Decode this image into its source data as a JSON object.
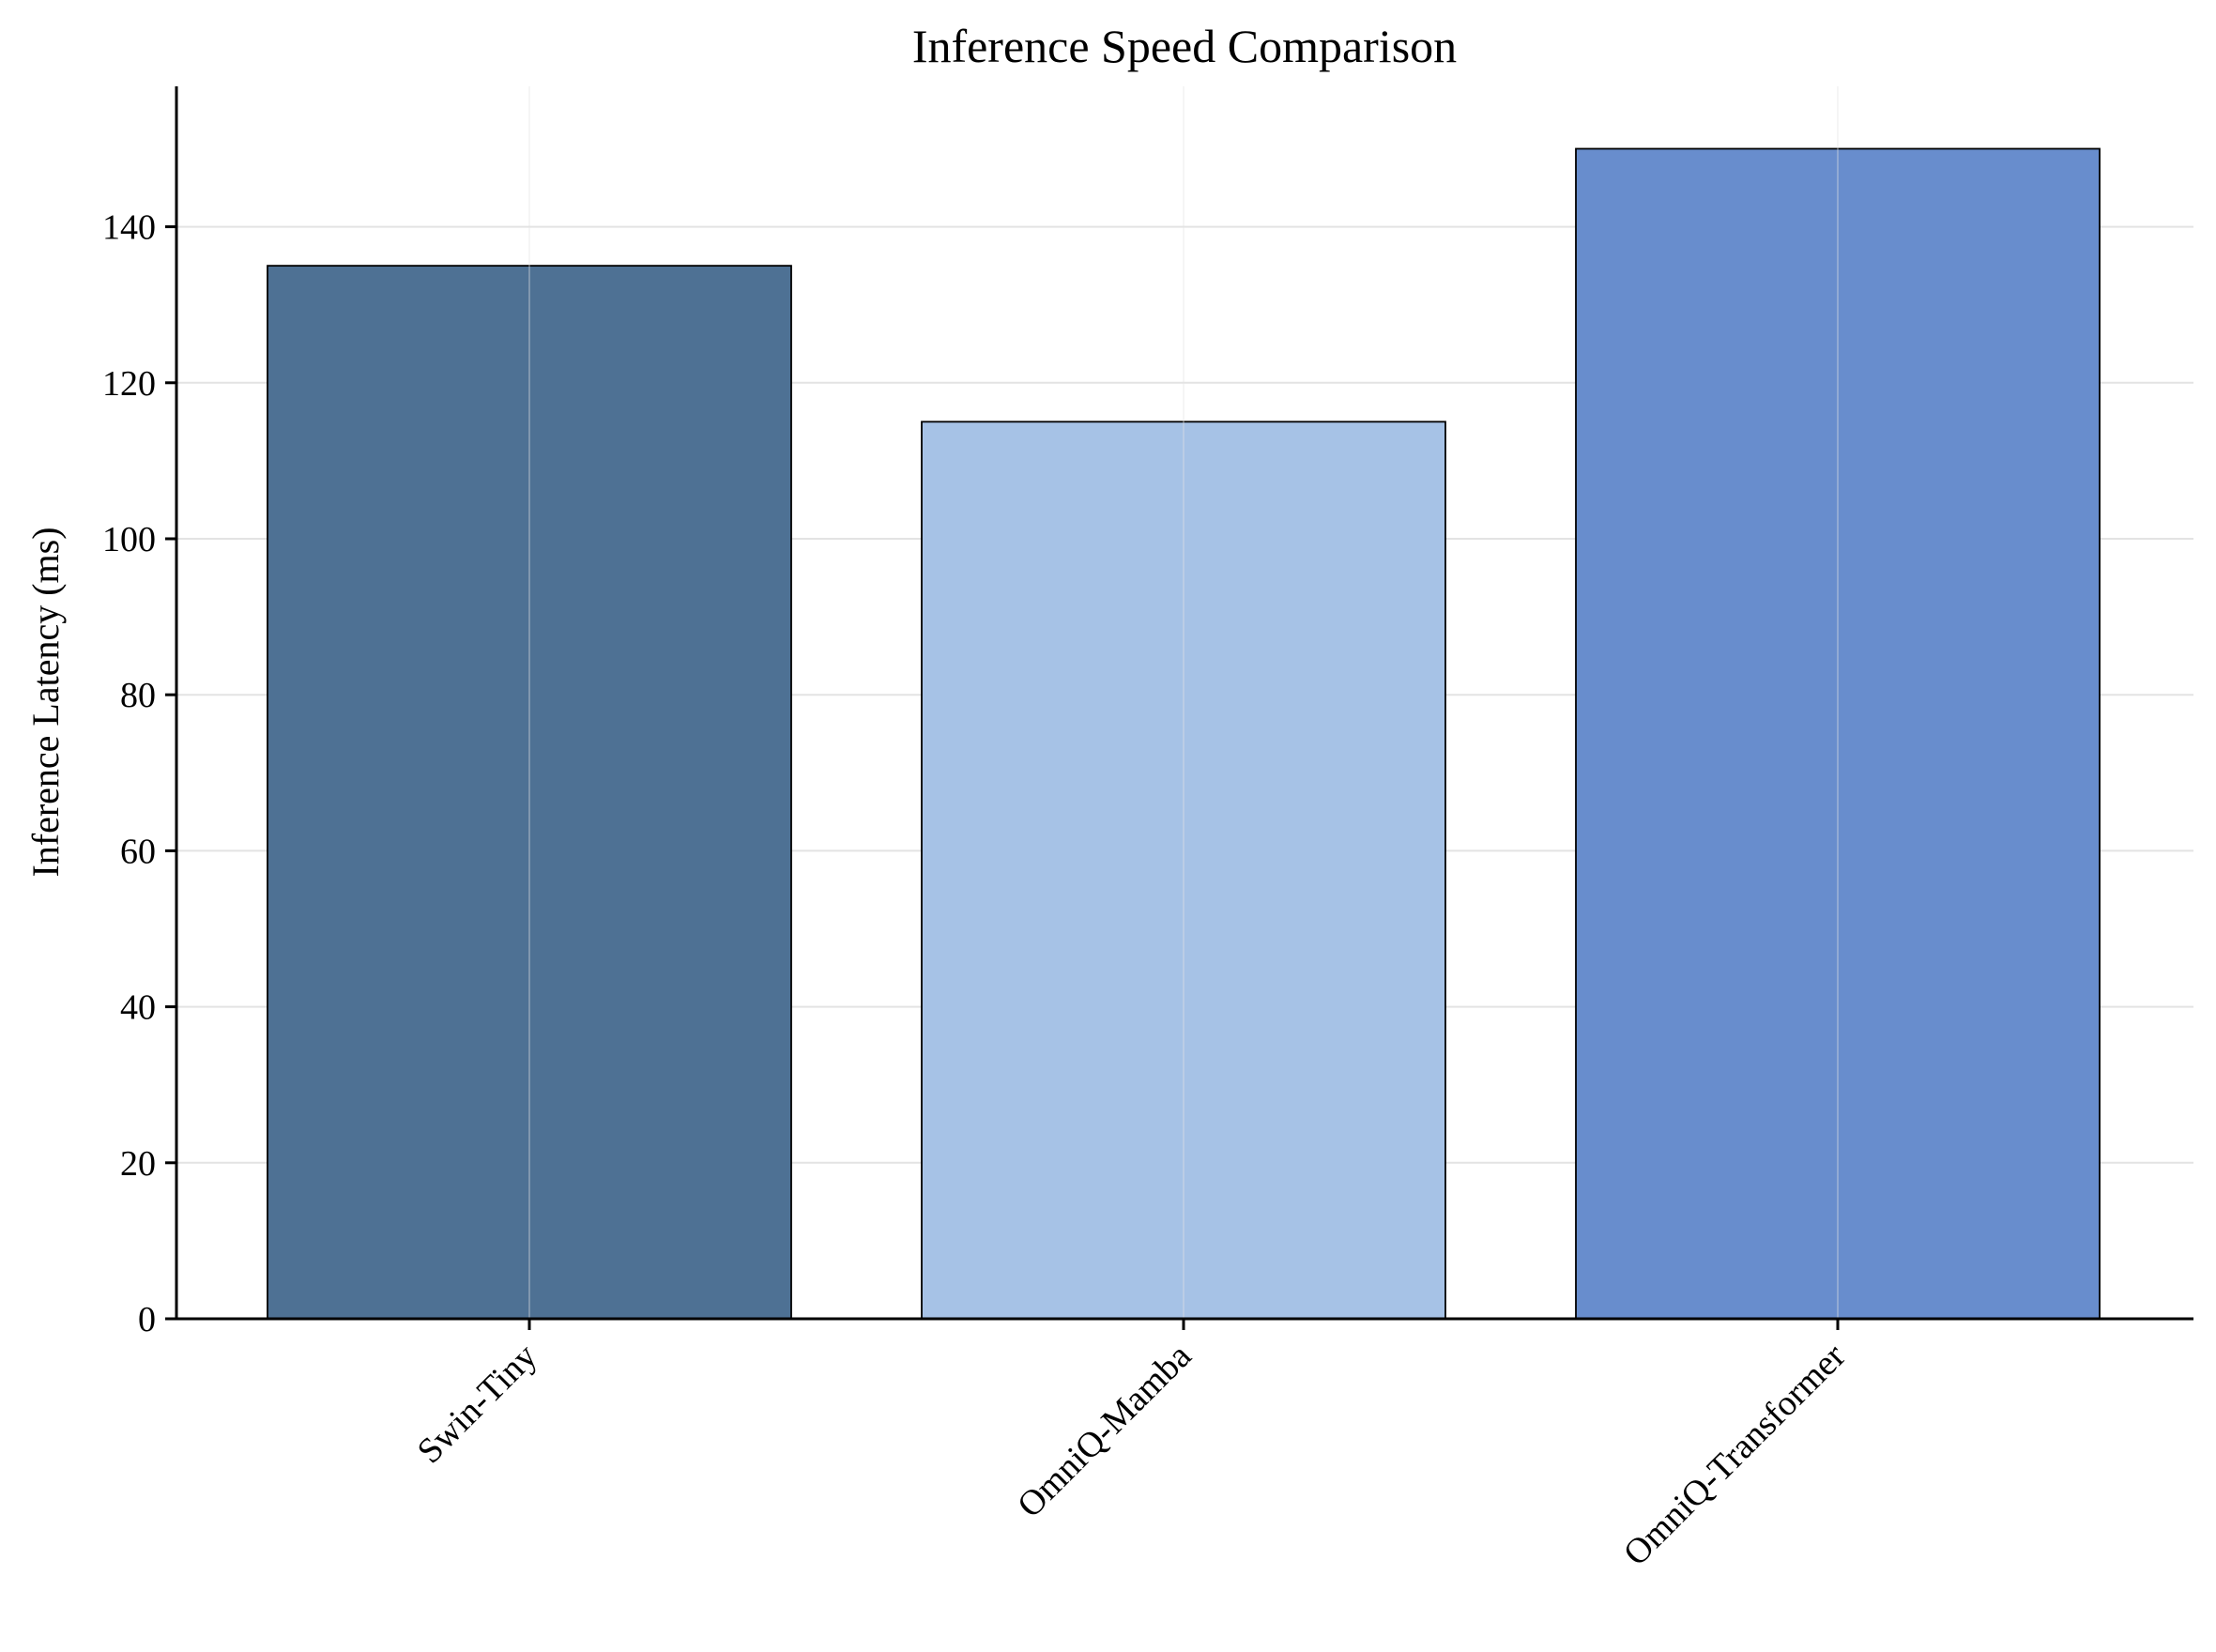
{
  "chart_data": {
    "type": "bar",
    "title": "Inference Speed Comparison",
    "xlabel": "",
    "ylabel": "Inference Latency (ms)",
    "categories": [
      "Swin-Tiny",
      "OmniQ-Mamba",
      "OmniQ-Transformer"
    ],
    "values": [
      135,
      115,
      150
    ],
    "colors": [
      "#4e7194",
      "#a6c2e6",
      "#688dcd"
    ],
    "ylim": [
      0,
      158
    ],
    "yticks": [
      0,
      20,
      40,
      60,
      80,
      100,
      120,
      140
    ],
    "grid": true,
    "legend": "none",
    "spines": "left-bottom"
  }
}
